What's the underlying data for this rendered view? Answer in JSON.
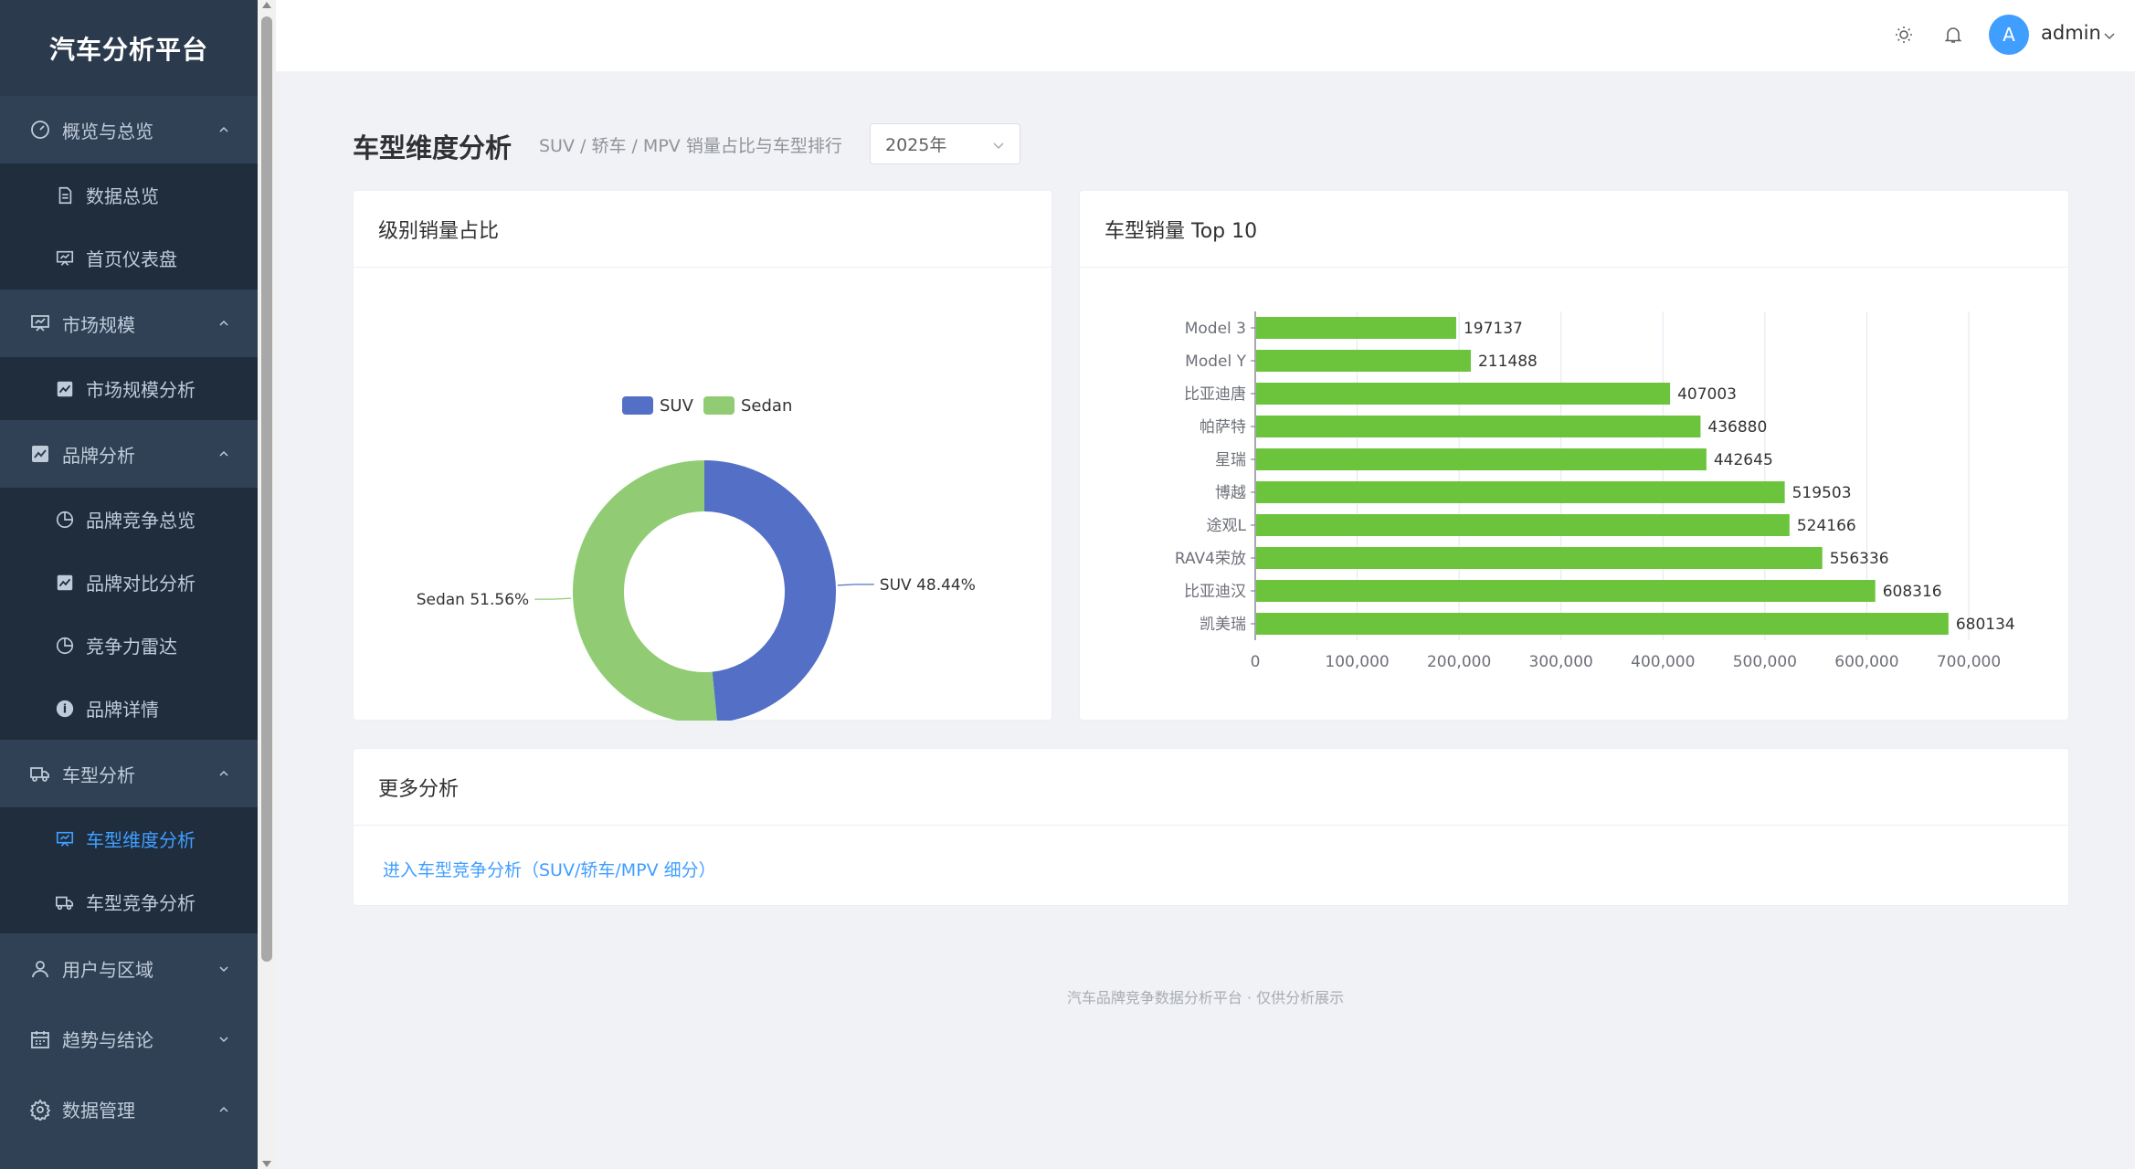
{
  "app": {
    "title": "汽车分析平台"
  },
  "sidebar": {
    "groups": [
      {
        "label": "概览与总览",
        "items": [
          "数据总览",
          "首页仪表盘"
        ]
      },
      {
        "label": "市场规模",
        "items": [
          "市场规模分析"
        ]
      },
      {
        "label": "品牌分析",
        "items": [
          "品牌竞争总览",
          "品牌对比分析",
          "竞争力雷达",
          "品牌详情"
        ]
      },
      {
        "label": "车型分析",
        "items": [
          "车型维度分析",
          "车型竞争分析"
        ]
      },
      {
        "label": "用户与区域",
        "items": []
      },
      {
        "label": "趋势与结论",
        "items": []
      },
      {
        "label": "数据管理",
        "items": []
      }
    ],
    "active_item": "车型维度分析"
  },
  "header": {
    "avatar_letter": "A",
    "username": "admin"
  },
  "page": {
    "title": "车型维度分析",
    "subtitle": "SUV / 轿车 / MPV 销量占比与车型排行",
    "year_select": "2025年"
  },
  "pie_card": {
    "title": "级别销量占比"
  },
  "bar_card": {
    "title": "车型销量 Top 10"
  },
  "more_card": {
    "title": "更多分析",
    "link": "进入车型竞争分析（SUV/轿车/MPV 细分）"
  },
  "footer": "汽车品牌竞争数据分析平台 · 仅供分析展示",
  "colors": {
    "sidebar_bg": "#304156",
    "accent": "#409eff",
    "suv": "#5470c6",
    "sedan": "#91cc75",
    "bar": "#6cc43c"
  },
  "chart_data": [
    {
      "type": "pie",
      "donut": true,
      "legend": [
        "SUV",
        "Sedan"
      ],
      "legend_position": "top",
      "slices": [
        {
          "name": "SUV",
          "value": 48.44,
          "label": "SUV 48.44%"
        },
        {
          "name": "Sedan",
          "value": 51.56,
          "label": "Sedan 51.56%"
        }
      ]
    },
    {
      "type": "bar",
      "orientation": "horizontal",
      "categories": [
        "Model 3",
        "Model Y",
        "比亚迪唐",
        "帕萨特",
        "星瑞",
        "博越",
        "途观L",
        "RAV4荣放",
        "比亚迪汉",
        "凯美瑞"
      ],
      "values": [
        197137,
        211488,
        407003,
        436880,
        442645,
        519503,
        524166,
        556336,
        608316,
        680134
      ],
      "xlim": [
        0,
        700000
      ],
      "x_ticks": [
        "0",
        "100,000",
        "200,000",
        "300,000",
        "400,000",
        "500,000",
        "600,000",
        "700,000"
      ],
      "grid": true
    }
  ]
}
